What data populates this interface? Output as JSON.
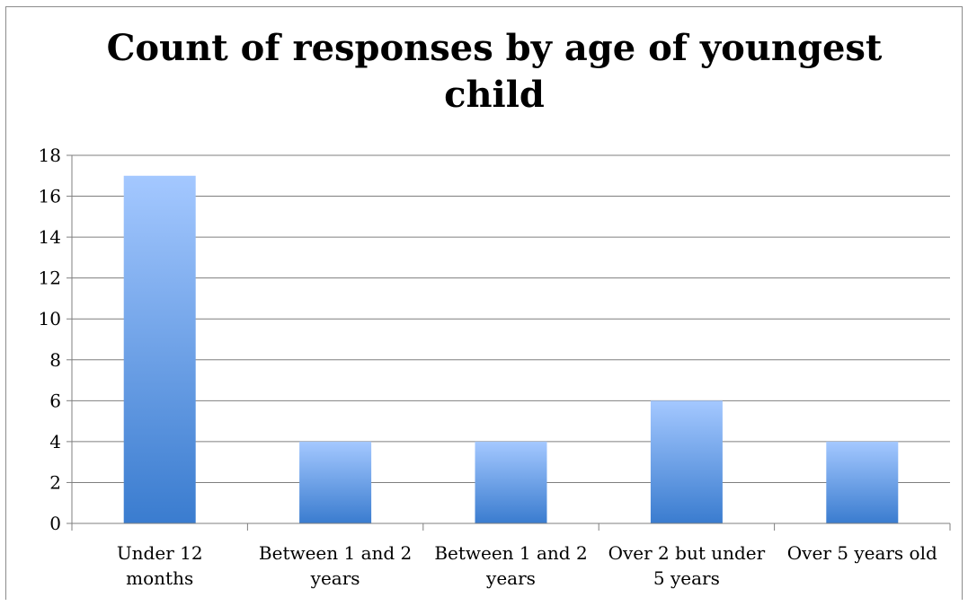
{
  "chart_data": {
    "type": "bar",
    "title": "Count of responses by age of youngest child",
    "categories": [
      [
        "Under 12",
        "months"
      ],
      [
        "Between 1 and 2",
        "years"
      ],
      [
        "Between 1 and 2",
        "years"
      ],
      [
        "Over 2 but under",
        "5 years"
      ],
      [
        "Over 5 years old"
      ]
    ],
    "values": [
      17,
      4,
      4,
      6,
      4
    ],
    "yticks": [
      "0",
      "2",
      "4",
      "6",
      "8",
      "10",
      "12",
      "14",
      "16",
      "18"
    ],
    "ylim": [
      0,
      18
    ],
    "grid": true,
    "legend": "none",
    "bar_color_top": "#a4c8ff",
    "bar_color_bottom": "#3a7ccf",
    "grid_color": "#7f7f7f"
  }
}
